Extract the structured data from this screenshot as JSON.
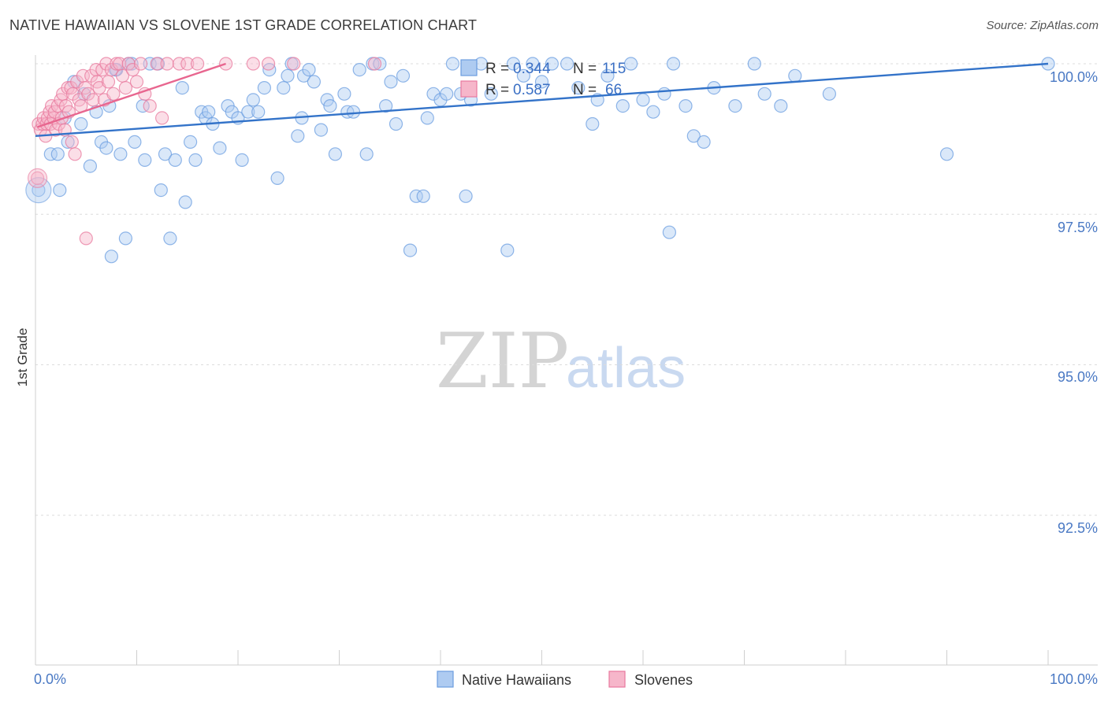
{
  "title": "NATIVE HAWAIIAN VS SLOVENE 1ST GRADE CORRELATION CHART",
  "source": "Source: ZipAtlas.com",
  "watermark": {
    "zip": "ZIP",
    "atlas": "atlas"
  },
  "chart_data": {
    "type": "scatter",
    "ylabel": "1st Grade",
    "xlim": [
      0,
      100
    ],
    "ylim": [
      90.0,
      100.3
    ],
    "x_tick_labels": [
      "0.0%",
      "100.0%"
    ],
    "y_tick_labels": [
      {
        "value": 100.0,
        "label": "100.0%"
      },
      {
        "value": 97.5,
        "label": "97.5%"
      },
      {
        "value": 95.0,
        "label": "95.0%"
      },
      {
        "value": 92.5,
        "label": "92.5%"
      }
    ],
    "legend": [
      {
        "name": "Native Hawaiians",
        "r_label": "R = ",
        "r": "0.344",
        "n_label": "N = ",
        "n": "115",
        "color": "#6b9de0",
        "fill": "#aecbf1"
      },
      {
        "name": "Slovenes",
        "r_label": "R = ",
        "r": "0.587",
        "n_label": "N = ",
        "n": "66",
        "color": "#e8799e",
        "fill": "#f6b6ca"
      }
    ],
    "series": [
      {
        "name": "Native Hawaiians",
        "trend": {
          "x": [
            0,
            100
          ],
          "y": [
            98.8,
            100.0
          ]
        },
        "points": [
          [
            0.3,
            97.9
          ],
          [
            1.5,
            98.5
          ],
          [
            2.2,
            98.5
          ],
          [
            2.4,
            97.9
          ],
          [
            3.2,
            98.7
          ],
          [
            3.8,
            99.7
          ],
          [
            4.5,
            99.0
          ],
          [
            4.8,
            99.5
          ],
          [
            5.4,
            98.3
          ],
          [
            6.0,
            99.2
          ],
          [
            6.5,
            98.7
          ],
          [
            7.0,
            98.6
          ],
          [
            7.3,
            99.3
          ],
          [
            7.5,
            96.8
          ],
          [
            8.0,
            99.9
          ],
          [
            8.4,
            98.5
          ],
          [
            8.9,
            97.1
          ],
          [
            9.2,
            100.0
          ],
          [
            9.5,
            100.0
          ],
          [
            9.8,
            98.7
          ],
          [
            10.6,
            99.3
          ],
          [
            10.8,
            98.4
          ],
          [
            11.3,
            100.0
          ],
          [
            12.4,
            97.9
          ],
          [
            12.8,
            98.5
          ],
          [
            13.3,
            97.1
          ],
          [
            13.8,
            98.4
          ],
          [
            14.5,
            99.6
          ],
          [
            14.8,
            97.7
          ],
          [
            15.3,
            98.7
          ],
          [
            15.8,
            98.4
          ],
          [
            16.4,
            99.2
          ],
          [
            16.8,
            99.1
          ],
          [
            17.1,
            99.2
          ],
          [
            17.5,
            99.0
          ],
          [
            18.2,
            98.6
          ],
          [
            19.0,
            99.3
          ],
          [
            19.4,
            99.2
          ],
          [
            20.0,
            99.1
          ],
          [
            20.4,
            98.4
          ],
          [
            21.0,
            99.2
          ],
          [
            21.5,
            99.4
          ],
          [
            22.0,
            99.2
          ],
          [
            22.6,
            99.6
          ],
          [
            23.1,
            99.9
          ],
          [
            23.9,
            98.1
          ],
          [
            24.5,
            99.6
          ],
          [
            24.9,
            99.8
          ],
          [
            25.3,
            100.0
          ],
          [
            25.9,
            98.8
          ],
          [
            26.5,
            99.8
          ],
          [
            27.0,
            99.9
          ],
          [
            27.5,
            99.7
          ],
          [
            28.2,
            98.9
          ],
          [
            28.8,
            99.4
          ],
          [
            29.1,
            99.3
          ],
          [
            29.6,
            98.5
          ],
          [
            30.5,
            99.5
          ],
          [
            30.8,
            99.2
          ],
          [
            31.4,
            99.2
          ],
          [
            32.0,
            99.9
          ],
          [
            32.7,
            98.5
          ],
          [
            33.3,
            100.0
          ],
          [
            34.0,
            100.0
          ],
          [
            34.6,
            99.3
          ],
          [
            35.1,
            99.7
          ],
          [
            35.6,
            99.0
          ],
          [
            36.3,
            99.8
          ],
          [
            37.0,
            96.9
          ],
          [
            37.6,
            97.8
          ],
          [
            38.3,
            97.8
          ],
          [
            38.7,
            99.1
          ],
          [
            39.3,
            99.5
          ],
          [
            40.0,
            99.4
          ],
          [
            40.6,
            99.5
          ],
          [
            41.2,
            100.0
          ],
          [
            42.0,
            99.5
          ],
          [
            42.5,
            97.8
          ],
          [
            43.0,
            99.4
          ],
          [
            44.0,
            100.0
          ],
          [
            45.0,
            99.5
          ],
          [
            46.6,
            96.9
          ],
          [
            47.2,
            100.0
          ],
          [
            48.2,
            99.8
          ],
          [
            49.1,
            100.0
          ],
          [
            50.0,
            99.7
          ],
          [
            51.0,
            100.0
          ],
          [
            52.5,
            100.0
          ],
          [
            53.6,
            99.6
          ],
          [
            55.0,
            99.0
          ],
          [
            56.5,
            99.8
          ],
          [
            58.0,
            99.3
          ],
          [
            58.8,
            100.0
          ],
          [
            60.0,
            99.4
          ],
          [
            61.0,
            99.2
          ],
          [
            62.1,
            99.5
          ],
          [
            62.6,
            97.2
          ],
          [
            63.0,
            100.0
          ],
          [
            64.2,
            99.3
          ],
          [
            65.0,
            98.8
          ],
          [
            66.0,
            98.7
          ],
          [
            67.0,
            99.6
          ],
          [
            69.1,
            99.3
          ],
          [
            71.0,
            100.0
          ],
          [
            72.0,
            99.5
          ],
          [
            73.6,
            99.3
          ],
          [
            75.0,
            99.8
          ],
          [
            78.4,
            99.5
          ],
          [
            90.0,
            98.5
          ],
          [
            100.0,
            100.0
          ],
          [
            2.9,
            99.1
          ],
          [
            7.9,
            99.9
          ],
          [
            12.1,
            100.0
          ],
          [
            55.5,
            99.4
          ],
          [
            26.3,
            99.1
          ]
        ]
      },
      {
        "name": "Slovenes",
        "trend": {
          "x": [
            0.2,
            18.8
          ],
          "y": [
            98.95,
            100.0
          ]
        },
        "points": [
          [
            0.2,
            98.1
          ],
          [
            0.3,
            99.0
          ],
          [
            0.5,
            98.9
          ],
          [
            0.7,
            99.0
          ],
          [
            0.8,
            99.1
          ],
          [
            1.0,
            98.8
          ],
          [
            1.1,
            99.0
          ],
          [
            1.2,
            99.1
          ],
          [
            1.4,
            99.2
          ],
          [
            1.5,
            99.0
          ],
          [
            1.6,
            99.3
          ],
          [
            1.8,
            99.1
          ],
          [
            1.9,
            99.2
          ],
          [
            2.0,
            98.9
          ],
          [
            2.2,
            99.3
          ],
          [
            2.3,
            99.0
          ],
          [
            2.5,
            99.4
          ],
          [
            2.6,
            99.1
          ],
          [
            2.7,
            99.5
          ],
          [
            2.9,
            98.9
          ],
          [
            3.0,
            99.3
          ],
          [
            3.2,
            99.6
          ],
          [
            3.3,
            99.2
          ],
          [
            3.5,
            99.6
          ],
          [
            3.6,
            98.7
          ],
          [
            3.7,
            99.5
          ],
          [
            3.9,
            98.5
          ],
          [
            4.1,
            99.7
          ],
          [
            4.3,
            99.4
          ],
          [
            4.5,
            99.3
          ],
          [
            4.7,
            99.8
          ],
          [
            4.9,
            99.6
          ],
          [
            5.0,
            97.1
          ],
          [
            5.2,
            99.5
          ],
          [
            5.5,
            99.8
          ],
          [
            5.7,
            99.4
          ],
          [
            6.0,
            99.9
          ],
          [
            6.1,
            99.7
          ],
          [
            6.3,
            99.6
          ],
          [
            6.6,
            99.9
          ],
          [
            6.8,
            99.4
          ],
          [
            7.0,
            100.0
          ],
          [
            7.2,
            99.7
          ],
          [
            7.5,
            99.9
          ],
          [
            7.7,
            99.5
          ],
          [
            8.0,
            100.0
          ],
          [
            8.3,
            100.0
          ],
          [
            8.6,
            99.8
          ],
          [
            8.9,
            99.6
          ],
          [
            9.2,
            100.0
          ],
          [
            9.6,
            99.9
          ],
          [
            10.0,
            99.7
          ],
          [
            10.4,
            100.0
          ],
          [
            10.8,
            99.5
          ],
          [
            11.3,
            99.3
          ],
          [
            12.0,
            100.0
          ],
          [
            12.5,
            99.1
          ],
          [
            13.0,
            100.0
          ],
          [
            14.2,
            100.0
          ],
          [
            15.0,
            100.0
          ],
          [
            16.0,
            100.0
          ],
          [
            18.8,
            100.0
          ],
          [
            21.5,
            100.0
          ],
          [
            23.0,
            100.0
          ],
          [
            25.5,
            100.0
          ],
          [
            33.5,
            100.0
          ]
        ]
      }
    ]
  }
}
